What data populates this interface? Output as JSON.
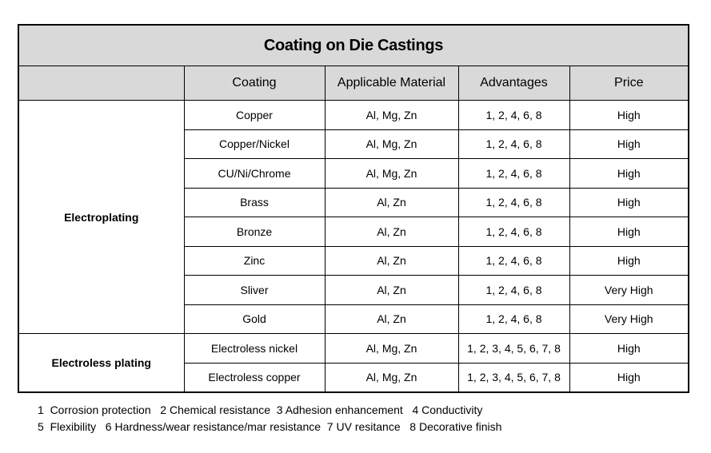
{
  "title": "Coating on Die Castings",
  "columns": [
    "",
    "Coating",
    "Applicable  Material",
    "Advantages",
    "Price"
  ],
  "groups": [
    {
      "name": "Electroplating",
      "rows": [
        {
          "coating": "Copper",
          "material": "Al, Mg, Zn",
          "advantages": "1, 2, 4, 6, 8",
          "price": "High"
        },
        {
          "coating": "Copper/Nickel",
          "material": "Al, Mg, Zn",
          "advantages": "1, 2, 4, 6, 8",
          "price": "High"
        },
        {
          "coating": "CU/Ni/Chrome",
          "material": "Al, Mg, Zn",
          "advantages": "1, 2, 4, 6, 8",
          "price": "High"
        },
        {
          "coating": "Brass",
          "material": "Al, Zn",
          "advantages": "1, 2, 4, 6, 8",
          "price": "High"
        },
        {
          "coating": "Bronze",
          "material": "Al, Zn",
          "advantages": "1, 2, 4, 6, 8",
          "price": "High"
        },
        {
          "coating": "Zinc",
          "material": "Al, Zn",
          "advantages": "1, 2, 4, 6, 8",
          "price": "High"
        },
        {
          "coating": "Sliver",
          "material": "Al, Zn",
          "advantages": "1, 2, 4, 6, 8",
          "price": "Very High"
        },
        {
          "coating": "Gold",
          "material": "Al, Zn",
          "advantages": "1, 2, 4, 6, 8",
          "price": "Very High"
        }
      ]
    },
    {
      "name": "Electroless plating",
      "rows": [
        {
          "coating": "Electroless nickel",
          "material": "Al, Mg, Zn",
          "advantages": "1, 2, 3, 4, 5, 6, 7, 8",
          "price": "High"
        },
        {
          "coating": "Electroless copper",
          "material": "Al, Mg, Zn",
          "advantages": "1, 2, 3, 4, 5, 6, 7, 8",
          "price": "High"
        }
      ]
    }
  ],
  "legend": {
    "line1": "1  Corrosion protection   2 Chemical resistance  3 Adhesion enhancement   4 Conductivity",
    "line2": "5  Flexibility   6 Hardness/wear resistance/mar resistance  7 UV resitance   8 Decorative finish"
  }
}
